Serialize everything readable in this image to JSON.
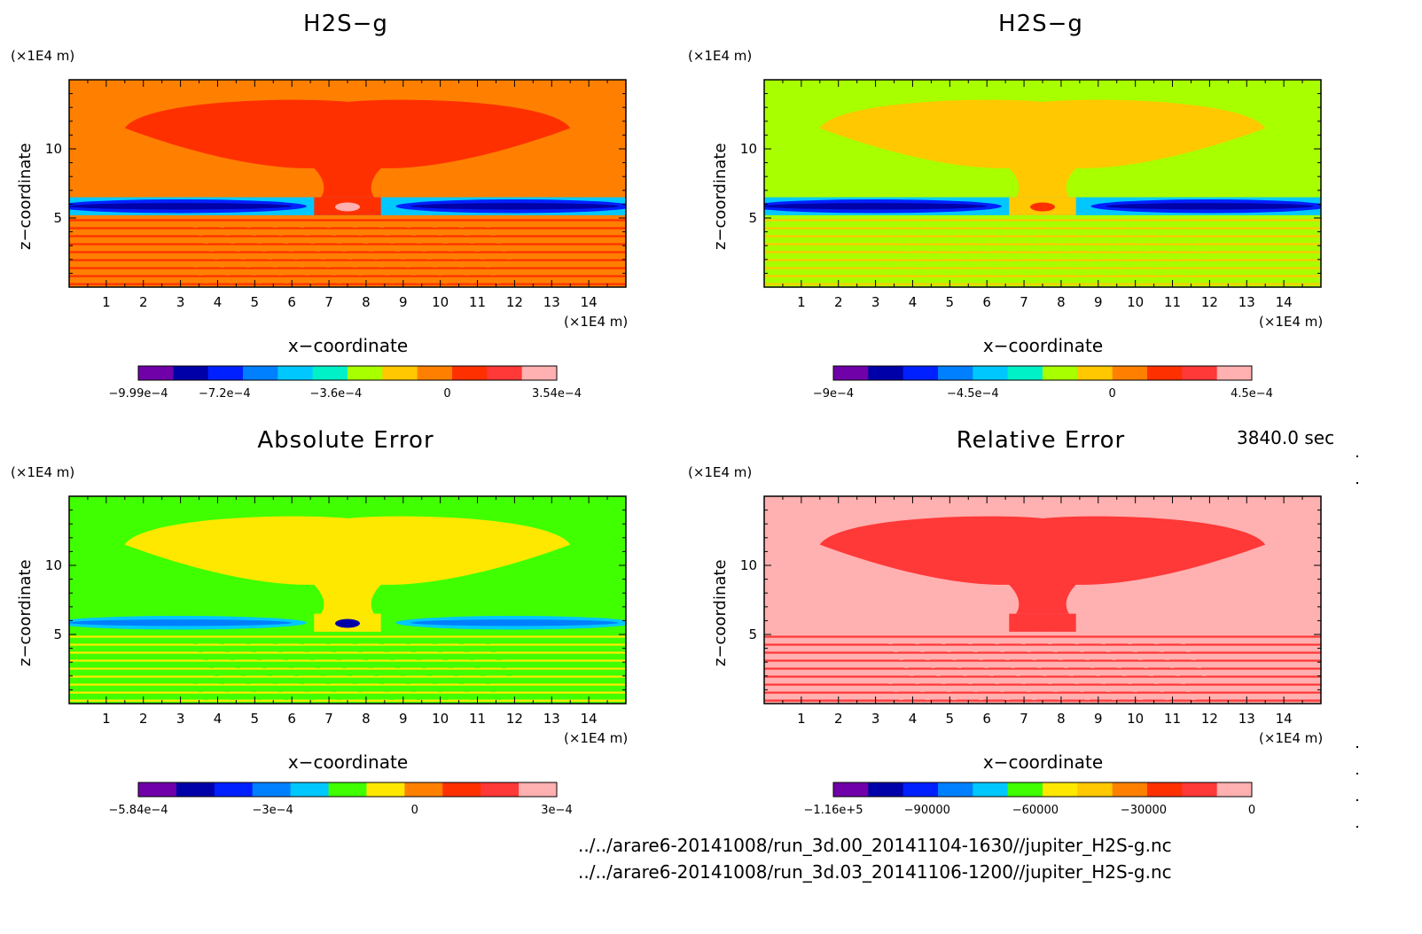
{
  "time_label": "3840.0 sec",
  "file_paths": [
    "../../arare6-20141008/run_3d.00_20141104-1630//jupiter_H2S-g.nc",
    "../../arare6-20141008/run_3d.03_20141106-1200//jupiter_H2S-g.nc"
  ],
  "colors": {
    "purple": "#7000a8",
    "darkblue": "#0000a8",
    "blue": "#0020ff",
    "midblue": "#0080ff",
    "cyan": "#00c8ff",
    "aqua": "#00f0c8",
    "green": "#40ff00",
    "lime": "#a8ff00",
    "yellow": "#ffe800",
    "gold": "#ffc800",
    "orange": "#ff8000",
    "red": "#ff3000",
    "crimson": "#ff3838",
    "pink": "#ffb0b0"
  },
  "chart_data": [
    {
      "type": "heatmap",
      "title": "H2S−g",
      "xlabel": "x−coordinate",
      "ylabel": "z−coordinate",
      "x_unit": "(×1E4 m)",
      "z_unit": "(×1E4 m)",
      "xlim": [
        0,
        15
      ],
      "zlim": [
        0,
        15
      ],
      "x_ticks": [
        "1",
        "2",
        "3",
        "4",
        "5",
        "6",
        "7",
        "8",
        "9",
        "10",
        "11",
        "12",
        "13",
        "14"
      ],
      "z_ticks": [
        "5",
        "10"
      ],
      "colorbar_ticks": [
        {
          "label": "−9.99e−4",
          "value": -0.000999
        },
        {
          "label": "−7.2e−4",
          "value": -0.00072
        },
        {
          "label": "−3.6e−4",
          "value": -0.00036
        },
        {
          "label": "0",
          "value": 0
        },
        {
          "label": "3.54e−4",
          "value": 0.000354
        }
      ],
      "colorbar_colors": [
        "#7000a8",
        "#0000a8",
        "#0020ff",
        "#0080ff",
        "#00c8ff",
        "#00f0c8",
        "#a8ff00",
        "#ffc800",
        "#ff8000",
        "#ff3000",
        "#ff3838",
        "#ffb0b0"
      ],
      "scheme": {
        "bg": "#ff8000",
        "plume": "#ff3000",
        "band_core": "#0000a8",
        "band_mid": "#0020ff",
        "band_edge": "#00c8ff",
        "lower_a": "#ff3000",
        "lower_b": "#ff8000",
        "center": "#ffb0b0"
      }
    },
    {
      "type": "heatmap",
      "title": "H2S−g",
      "xlabel": "x−coordinate",
      "ylabel": "z−coordinate",
      "x_unit": "(×1E4 m)",
      "z_unit": "(×1E4 m)",
      "xlim": [
        0,
        15
      ],
      "zlim": [
        0,
        15
      ],
      "x_ticks": [
        "1",
        "2",
        "3",
        "4",
        "5",
        "6",
        "7",
        "8",
        "9",
        "10",
        "11",
        "12",
        "13",
        "14"
      ],
      "z_ticks": [
        "5",
        "10"
      ],
      "colorbar_ticks": [
        {
          "label": "−9e−4",
          "value": -0.0009
        },
        {
          "label": "−4.5e−4",
          "value": -0.00045
        },
        {
          "label": "0",
          "value": 0
        },
        {
          "label": "4.5e−4",
          "value": 0.00045
        }
      ],
      "colorbar_colors": [
        "#7000a8",
        "#0000a8",
        "#0020ff",
        "#0080ff",
        "#00c8ff",
        "#00f0c8",
        "#a8ff00",
        "#ffc800",
        "#ff8000",
        "#ff3000",
        "#ff3838",
        "#ffb0b0"
      ],
      "scheme": {
        "bg": "#a8ff00",
        "plume": "#ffc800",
        "band_core": "#0000a8",
        "band_mid": "#0020ff",
        "band_edge": "#00c8ff",
        "lower_a": "#ffc800",
        "lower_b": "#a8ff00",
        "center": "#ff3000"
      }
    },
    {
      "type": "heatmap",
      "title": "Absolute Error",
      "xlabel": "x−coordinate",
      "ylabel": "z−coordinate",
      "x_unit": "(×1E4 m)",
      "z_unit": "(×1E4 m)",
      "xlim": [
        0,
        15
      ],
      "zlim": [
        0,
        15
      ],
      "x_ticks": [
        "1",
        "2",
        "3",
        "4",
        "5",
        "6",
        "7",
        "8",
        "9",
        "10",
        "11",
        "12",
        "13",
        "14"
      ],
      "z_ticks": [
        "5",
        "10"
      ],
      "colorbar_ticks": [
        {
          "label": "−5.84e−4",
          "value": -0.000584
        },
        {
          "label": "−3e−4",
          "value": -0.0003
        },
        {
          "label": "0",
          "value": 0
        },
        {
          "label": "3e−4",
          "value": 0.0003
        }
      ],
      "colorbar_colors": [
        "#7000a8",
        "#0000a8",
        "#0020ff",
        "#0080ff",
        "#00c8ff",
        "#40ff00",
        "#ffe800",
        "#ff8000",
        "#ff3000",
        "#ff3838",
        "#ffb0b0"
      ],
      "scheme": {
        "bg": "#40ff00",
        "plume": "#ffe800",
        "band_core": "#0080ff",
        "band_mid": "#00c8ff",
        "band_edge": "#40ff00",
        "lower_a": "#ffe800",
        "lower_b": "#40ff00",
        "center": "#0000a8"
      }
    },
    {
      "type": "heatmap",
      "title": "Relative Error",
      "xlabel": "x−coordinate",
      "ylabel": "z−coordinate",
      "x_unit": "(×1E4 m)",
      "z_unit": "(×1E4 m)",
      "xlim": [
        0,
        15
      ],
      "zlim": [
        0,
        15
      ],
      "x_ticks": [
        "1",
        "2",
        "3",
        "4",
        "5",
        "6",
        "7",
        "8",
        "9",
        "10",
        "11",
        "12",
        "13",
        "14"
      ],
      "z_ticks": [
        "5",
        "10"
      ],
      "colorbar_ticks": [
        {
          "label": "−1.16e+5",
          "value": -116000
        },
        {
          "label": "−90000",
          "value": -90000
        },
        {
          "label": "−60000",
          "value": -60000
        },
        {
          "label": "−30000",
          "value": -30000
        },
        {
          "label": "0",
          "value": 0
        }
      ],
      "colorbar_colors": [
        "#7000a8",
        "#0000a8",
        "#0020ff",
        "#0080ff",
        "#00c8ff",
        "#40ff00",
        "#ffe800",
        "#ffc800",
        "#ff8000",
        "#ff3000",
        "#ff3838",
        "#ffb0b0"
      ],
      "scheme": {
        "bg": "#ffb0b0",
        "plume": "#ff3838",
        "band_core": "#ffb0b0",
        "band_mid": "#ffb0b0",
        "band_edge": "#ffb0b0",
        "lower_a": "#ff3838",
        "lower_b": "#ffb0b0",
        "center": "#ff3838"
      }
    }
  ]
}
